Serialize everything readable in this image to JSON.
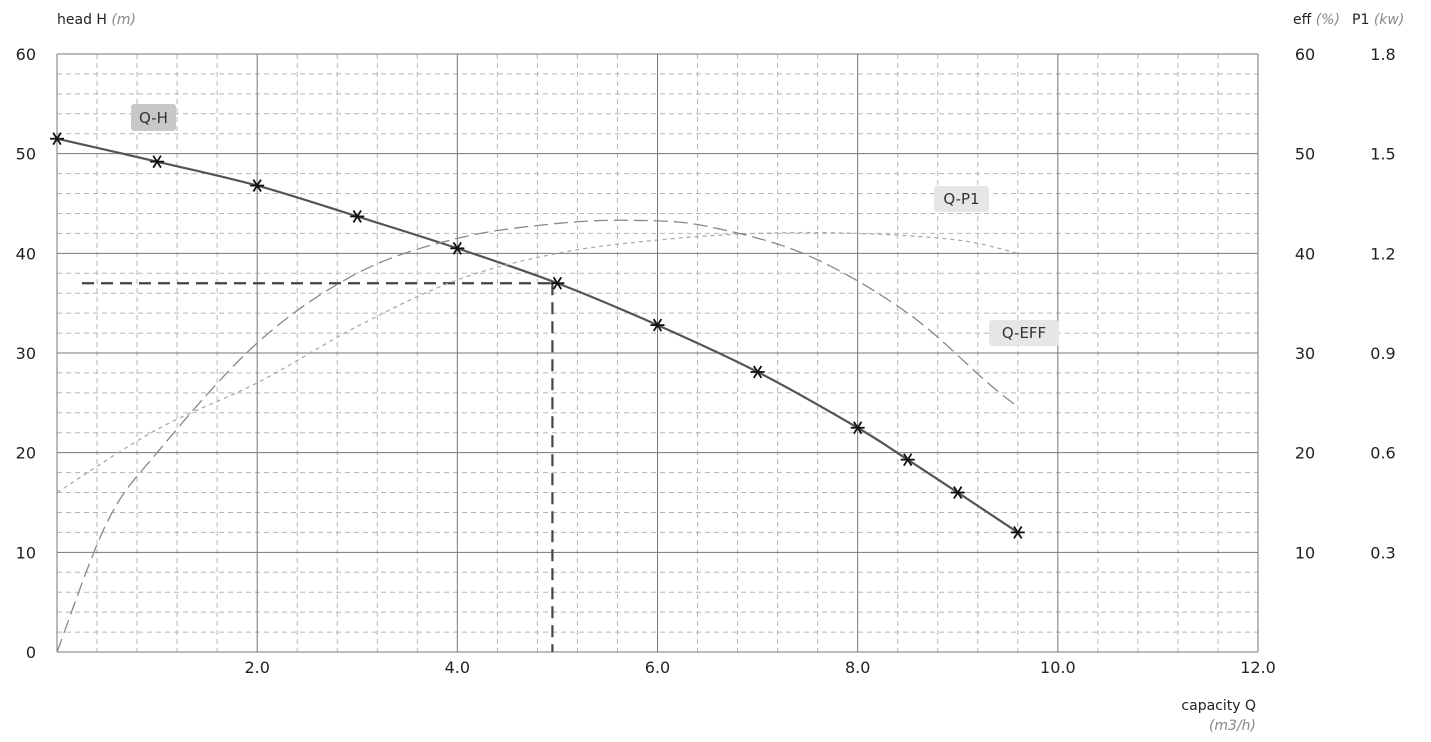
{
  "chart_data": {
    "type": "line",
    "title": "",
    "axes": {
      "left": {
        "label": "head H",
        "unit": "(m)",
        "min": 0,
        "max": 60,
        "ticks": [
          "0",
          "10",
          "20",
          "30",
          "40",
          "50",
          "60"
        ]
      },
      "bottom": {
        "label": "capacity Q",
        "unit": "(m3/h)",
        "min": 0,
        "max": 12,
        "ticks": [
          "2.0",
          "4.0",
          "6.0",
          "8.0",
          "10.0",
          "12.0"
        ]
      },
      "right_eff": {
        "label": "eff",
        "unit": "(%)",
        "ticks": [
          "10",
          "20",
          "30",
          "40",
          "50",
          "60"
        ]
      },
      "right_p1": {
        "label": "P1",
        "unit": "(kw)",
        "ticks": [
          "0.3",
          "0.6",
          "0.9",
          "1.2",
          "1.5",
          "1.8"
        ]
      }
    },
    "grid": true,
    "series": [
      {
        "name": "Q-H",
        "axis": "head",
        "style": "solid-with-markers",
        "x": [
          0,
          1,
          2,
          3,
          4,
          5,
          6,
          7,
          8,
          8.5,
          9,
          9.6
        ],
        "y": [
          51.5,
          49.2,
          46.8,
          43.7,
          40.5,
          37,
          32.8,
          28.1,
          22.5,
          19.3,
          16,
          12
        ]
      },
      {
        "name": "Q-P1",
        "axis": "p1_kw",
        "style": "short-dash",
        "x": [
          0,
          1,
          2,
          3,
          4,
          5,
          6,
          7,
          8,
          9,
          9.6
        ],
        "y": [
          0.48,
          0.67,
          0.81,
          0.98,
          1.12,
          1.2,
          1.24,
          1.26,
          1.26,
          1.24,
          1.2
        ]
      },
      {
        "name": "Q-EFF",
        "axis": "eff_pct",
        "style": "long-dash",
        "x": [
          0,
          0.5,
          1,
          2,
          3,
          4,
          5,
          5.8,
          6.5,
          7.5,
          8.5,
          9.3,
          9.6
        ],
        "y": [
          0,
          13,
          20,
          31,
          38,
          41.5,
          43,
          43.3,
          42.7,
          39.8,
          34,
          27,
          24.6
        ]
      }
    ],
    "duty_point": {
      "x": 4.95,
      "y": 37
    },
    "labels": {
      "qh": "Q-H",
      "qp1": "Q-P1",
      "qeff": "Q-EFF"
    }
  }
}
